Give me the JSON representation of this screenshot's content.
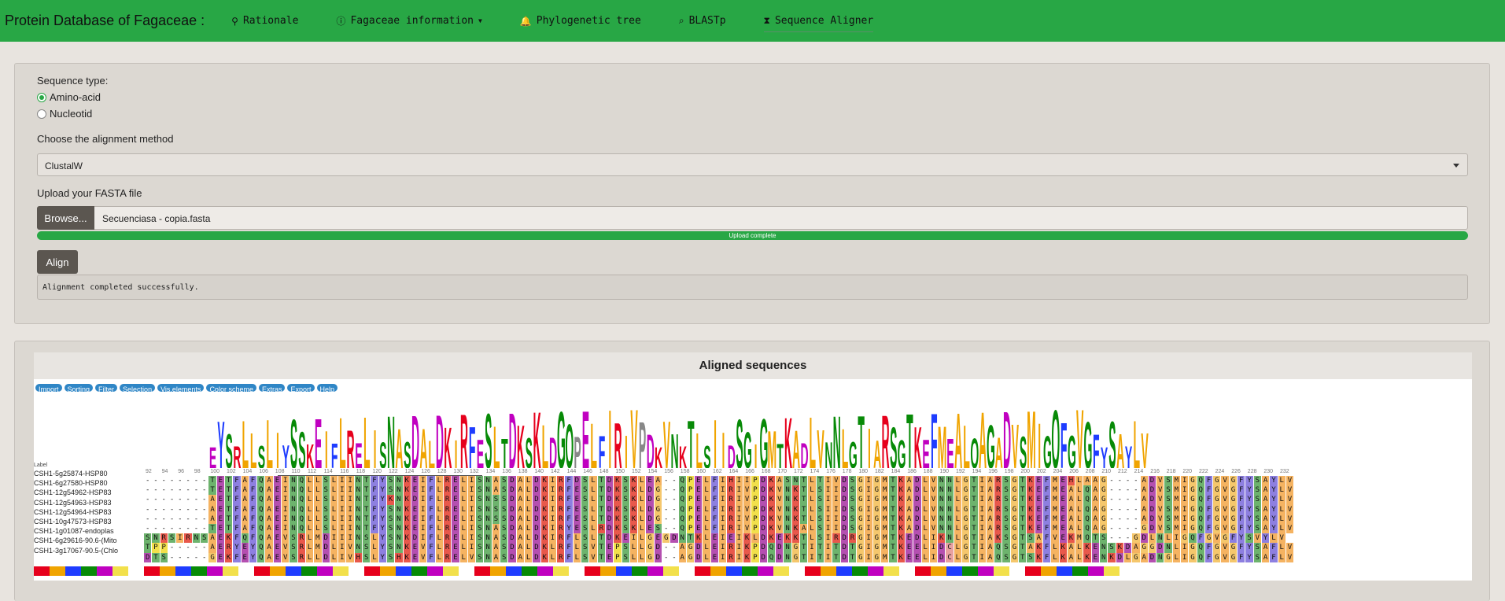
{
  "navbar": {
    "brand": "Protein Database of Fagaceae :",
    "items": [
      {
        "label": "Rationale",
        "icon": "map-marker-icon",
        "glyph": "⚲"
      },
      {
        "label": "Fagaceae information",
        "icon": "info-circle-icon",
        "glyph": "ⓘ",
        "dropdown": true
      },
      {
        "label": "Phylogenetic tree",
        "icon": "bell-icon",
        "glyph": "🔔"
      },
      {
        "label": "BLASTp",
        "icon": "search-icon",
        "glyph": "⌕"
      },
      {
        "label": "Sequence Aligner",
        "icon": "hourglass-icon",
        "glyph": "⧗",
        "active": true
      }
    ]
  },
  "form": {
    "sequence_type_label": "Sequence type:",
    "options": [
      "Amino-acid",
      "Nucleotid"
    ],
    "selected_option": "Amino-acid",
    "method_label": "Choose the alignment method",
    "method_value": "ClustalW",
    "upload_label": "Upload your FASTA file",
    "browse_label": "Browse...",
    "filename": "Secuenciasa - copia.fasta",
    "progress_text": "Upload complete",
    "progress": 1.0,
    "align_label": "Align",
    "status_text": "Alignment completed successfully."
  },
  "msa": {
    "title": "Aligned sequences",
    "menu": [
      "Import",
      "Sorting",
      "Filter",
      "Selection",
      "Vis.elements",
      "Color scheme",
      "Extras",
      "Export",
      "Help"
    ],
    "label_header": "Label",
    "ruler": [
      "92",
      "94",
      "96",
      "98",
      "100",
      "102",
      "104",
      "106",
      "108",
      "110",
      "112",
      "114",
      "116",
      "118",
      "120",
      "122",
      "124",
      "126",
      "128",
      "130",
      "132",
      "134",
      "136",
      "138",
      "140",
      "142",
      "144",
      "146",
      "148",
      "150",
      "152",
      "154",
      "156",
      "158",
      "160",
      "162",
      "164",
      "166",
      "168",
      "170",
      "172",
      "174",
      "176",
      "178",
      "180",
      "182",
      "184",
      "186",
      "188",
      "190",
      "192",
      "194",
      "196",
      "198",
      "200",
      "202",
      "204",
      "206",
      "208",
      "210",
      "212",
      "214",
      "216",
      "218",
      "220",
      "222",
      "224",
      "226",
      "228",
      "230",
      "232"
    ],
    "sequences": [
      {
        "label": "CSH1-5g25874-HSP80",
        "seq": "--------TETFAFQAEINQLLSLIINTFYSNKEIFLRELISNASDALDKIRFDSLTDKSKLEA--QPELFIHIIPDKASNTLTIVDSGIGMTKADLVNNLGTIARSGTKEFMEHLAAG----ADVSMIGQFGVGFYSAYLV"
      },
      {
        "label": "CSH1-6g27580-HSP80",
        "seq": "--------TETFAFQAEINQLLSLIINTFYSNKEIFLRELISNASDALDKIRFESLTDKSKLDG--QPELFIRIVPDKVNKTLSIIDSGIGMTKADLVNNLGTIARSGTKEFMEALQAG----ADVSMIGQFGVGFYSAYLV"
      },
      {
        "label": "CSH1-12g54962-HSP83",
        "seq": "--------AETFAFQAEINQLLSLIINTFYKNKDIFLRELISNSSDALDKIRFESLTDKSKLDG--QPELFIRIVPDKVNKTLSIIDSGIGMTKADLVNNLGTIARSGTKEFMEALQAG----ADVSMIGQFGVGFYSAYLV"
      },
      {
        "label": "CSH1-12g54963-HSP83",
        "seq": "--------AETFAFQAEINQLLSLIINTFYSNKEIFLRELISNSSDALDKIRFESLTDKSKLDG--QPELFIRIVPDKVNKTLSIIDSGIGMTKADLVNNLGTIARSGTKEFMEALQAG----ADVSMIGQFGVGFYSAYLV"
      },
      {
        "label": "CSH1-12g54964-HSP83",
        "seq": "--------AETFAFQAEINQLLSLIINTFYSNKEIFLRELISNSSDALDKIRFESLTDKSKLDG--QPELFIRIVPDKVNKTLSIIDSGIGMTKADLVNNLGTIARSGTKEFMEALQAG----ADVSMIGQFGVGFYSAYLV"
      },
      {
        "label": "CSH1-10g47573-HSP83",
        "seq": "--------TETFAFQAEINQLLSLIINTFYSNKEIFLRELISNASDALDKIRYESLRDKSKLES--QPELFIRIVPDKVNKALSIIDSGIGMTKADLVNNLGTIARSGTKEFMEALQAG----GDVSMIGQFGVGFYSAYLV"
      },
      {
        "label": "CSH1-1g01087-endoplas",
        "seq": "SNRSIRNSAEKFQFQAEVSRLMDIIINSLYSNKDIFLRELISNASDALDKIRFLSLTDKEILGEGDNTKLEIEIKLDKEKKTLSIRDRGIGMTKEDLIKNLGTIAKSGTSAFVEKMQTS---GDLNLIGQFGVGFYSVYLV"
      },
      {
        "label": "CSH1-6g29616-90.6-(Mito",
        "seq": "TPP-----AERYEYQAEVSRLMDLIVNSLYSNKEVFLRELISNASDALDKLRFLSVTEPSLLGD--AGDLEIRIKPDQDNGTITITDTGIGMTKEELIDCLGTIAQSGTAKFLKALKENSKDAGGDNLIGQFGVGFYSAFLV"
      },
      {
        "label": "CSH1-3g17067-90.5-(Chlo",
        "seq": "DTS-----GEKFEYQAEVSRLLDLIVHSLYSHKEVFLRELVSNASDALDKLRFLSVTEPSLLGD--AGDLEIRIKPDQDNGTITITDTGIGMTKEELIDCLGTIAQSGTSKFLKALKENKDLGADNGLIGQFGVGFYSAFLV"
      }
    ],
    "logo_letters": "EYSRLLSLIYSSKEIFLRELISNASDALDKIRFESLTDKSKLDGQPELFIRIVPDKVNKTLSIIDSGIGMTKADLVNNLGTIARSGTKEFMEALQAGADVSMIGQFGVGFYSAYLV",
    "colors": {
      "hydrophobic": "#f5b361",
      "aromatic": "#8d7fe0",
      "positive": "#e8584b",
      "negative": "#b44fb0",
      "polar": "#6db36d",
      "glycine": "#f5c76c",
      "proline": "#f2e04b",
      "cysteine": "#e8a0a0",
      "gap": "#ffffff"
    }
  }
}
